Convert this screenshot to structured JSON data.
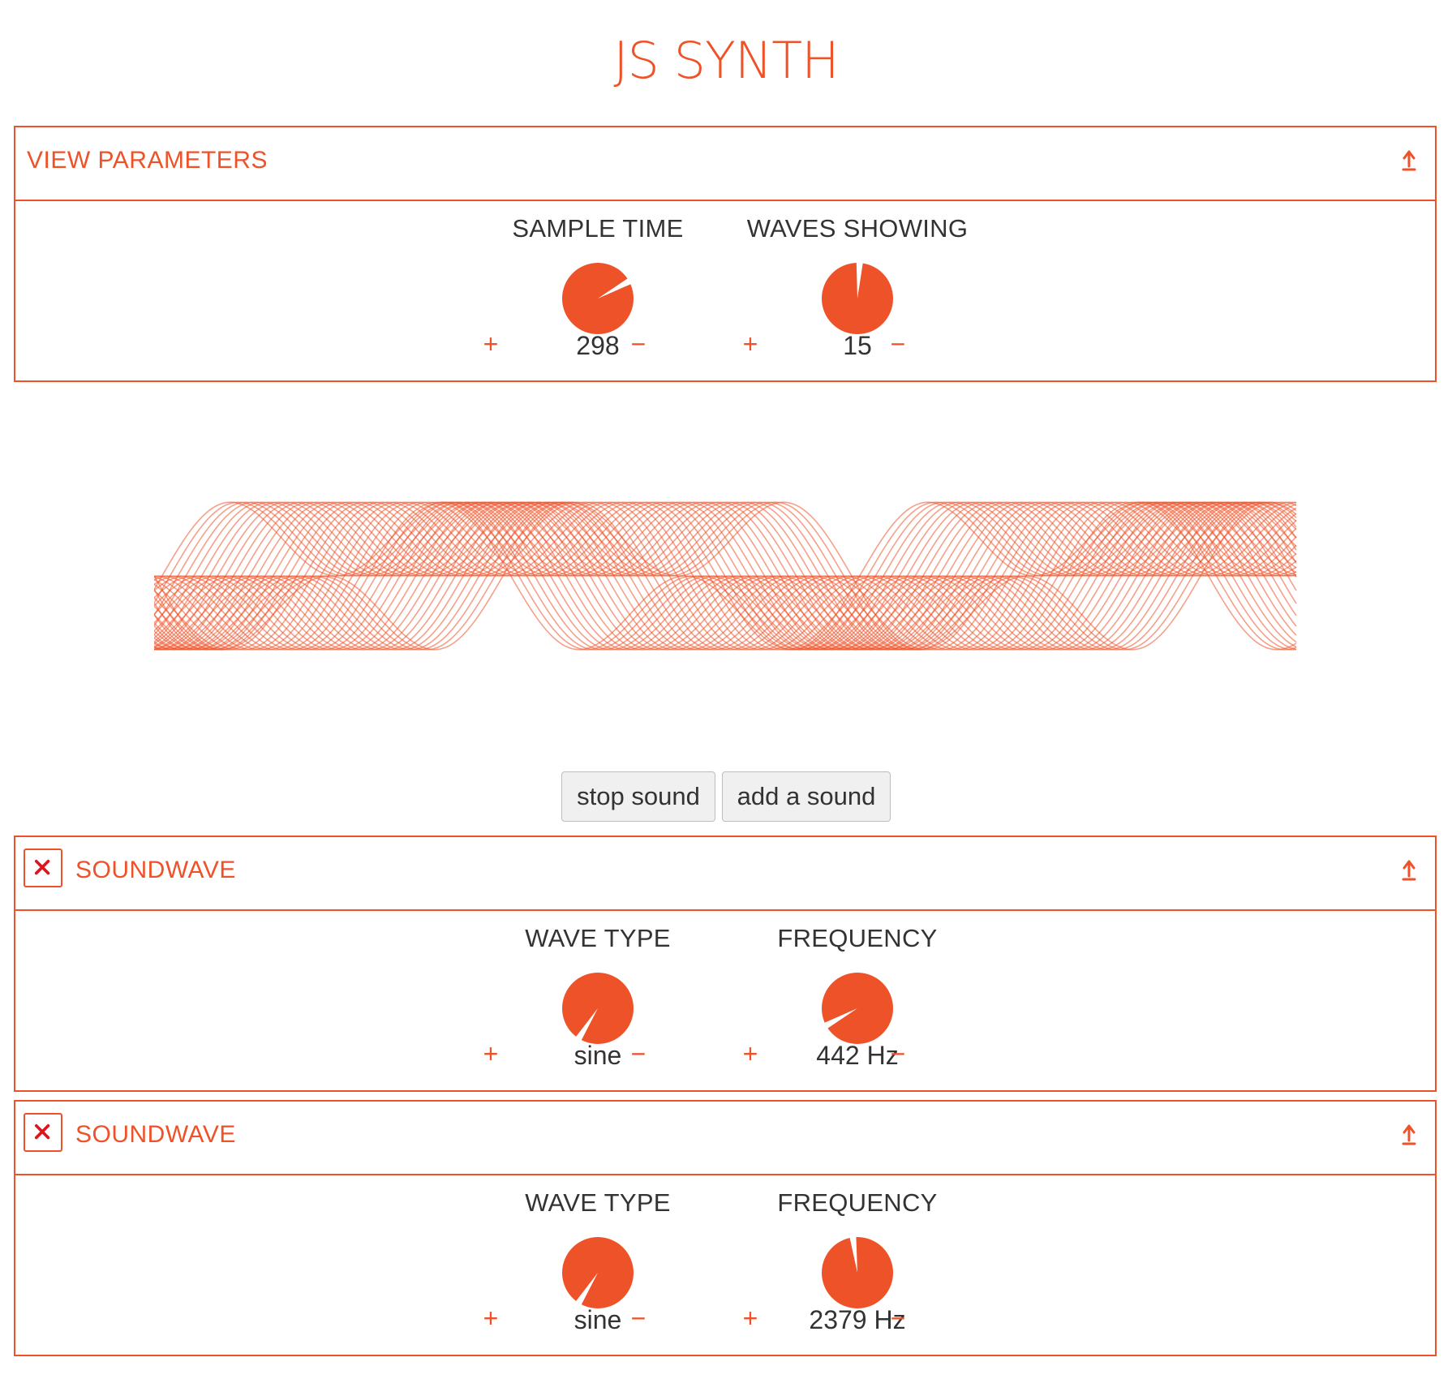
{
  "app": {
    "title": "JS SYNTH",
    "accent_color": "#ee5228"
  },
  "view_parameters": {
    "title": "VIEW PARAMETERS",
    "collapse_icon": "arrow-up-bar-icon",
    "params": [
      {
        "label": "SAMPLE TIME",
        "value": "298",
        "inc": "+",
        "dec": "−",
        "knob_level": 0.17
      },
      {
        "label": "WAVES SHOWING",
        "value": "15",
        "inc": "+",
        "dec": "−",
        "knob_level": 0.01
      }
    ]
  },
  "waveform": {
    "display": "oscilloscope",
    "color": "#ee5228"
  },
  "controls": {
    "stop_label": "stop sound",
    "add_label": "add a sound"
  },
  "soundwaves": [
    {
      "title": "SOUNDWAVE",
      "remove_icon": "close-icon",
      "collapse_icon": "arrow-up-bar-icon",
      "params": [
        {
          "label": "WAVE TYPE",
          "value": "sine",
          "inc": "+",
          "dec": "−",
          "knob_level": 0.59
        },
        {
          "label": "FREQUENCY",
          "value": "442 Hz",
          "inc": "+",
          "dec": "−",
          "knob_level": 0.67
        }
      ]
    },
    {
      "title": "SOUNDWAVE",
      "remove_icon": "close-icon",
      "collapse_icon": "arrow-up-bar-icon",
      "params": [
        {
          "label": "WAVE TYPE",
          "value": "sine",
          "inc": "+",
          "dec": "−",
          "knob_level": 0.59
        },
        {
          "label": "FREQUENCY",
          "value": "2379 Hz",
          "inc": "+",
          "dec": "−",
          "knob_level": 0.98
        }
      ]
    }
  ]
}
